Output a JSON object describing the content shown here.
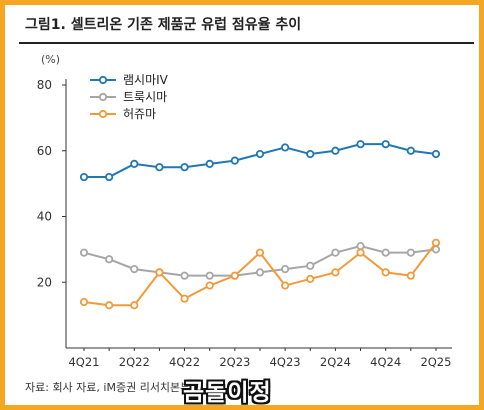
{
  "figure": {
    "title": "그림1.   셀트리온 기존 제품군 유럽 점유율 추이",
    "unit_label": "(%)",
    "source_text": "자료: 회사 자료, iM증권 리서치본부",
    "watermark_text": "곰돌이정"
  },
  "colors": {
    "border": "#f5a623",
    "series": [
      "#1f77b4",
      "#a6a6a6",
      "#f29a3a"
    ]
  },
  "chart_data": {
    "type": "line",
    "title": "그림1.   셀트리온 기존 제품군 유럽 점유율 추이",
    "ylabel": "(%)",
    "ylim": [
      0,
      80
    ],
    "yticks": [
      20,
      40,
      60,
      80
    ],
    "grid": false,
    "legend_position": "top-left",
    "categories": [
      "4Q21",
      "1Q22",
      "2Q22",
      "3Q22",
      "4Q22",
      "1Q23",
      "2Q23",
      "3Q23",
      "4Q23",
      "1Q24",
      "2Q24",
      "3Q24",
      "4Q24",
      "1Q25",
      "2Q25"
    ],
    "x_tick_labels": [
      "4Q21",
      "2Q22",
      "4Q22",
      "2Q23",
      "4Q23",
      "2Q24",
      "4Q24",
      "2Q25"
    ],
    "series": [
      {
        "name": "램시마IV",
        "color": "#1f77b4",
        "values": [
          52,
          52,
          56,
          55,
          55,
          56,
          57,
          59,
          61,
          59,
          60,
          62,
          62,
          60,
          59
        ]
      },
      {
        "name": "트룩시마",
        "color": "#a6a6a6",
        "values": [
          29,
          27,
          24,
          23,
          22,
          22,
          22,
          23,
          24,
          25,
          29,
          31,
          29,
          29,
          30
        ]
      },
      {
        "name": "허쥬마",
        "color": "#f29a3a",
        "values": [
          14,
          13,
          13,
          23,
          15,
          19,
          22,
          29,
          19,
          21,
          23,
          29,
          23,
          22,
          32
        ]
      }
    ]
  }
}
